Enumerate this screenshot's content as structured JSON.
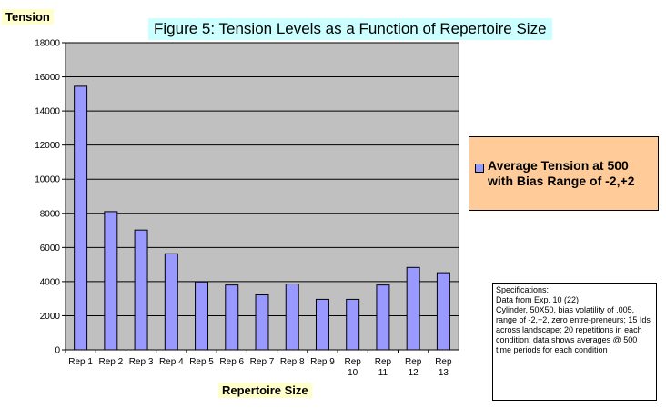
{
  "chart_data": {
    "type": "bar",
    "title": "Figure 5:  Tension Levels as a Function of Repertoire Size",
    "ylabel": "Tension",
    "xlabel": "Repertoire Size",
    "categories": [
      "Rep 1",
      "Rep 2",
      "Rep 3",
      "Rep 4",
      "Rep 5",
      "Rep 6",
      "Rep 7",
      "Rep 8",
      "Rep 9",
      "Rep 10",
      "Rep 11",
      "Rep 12",
      "Rep 13"
    ],
    "series": [
      {
        "name": "Average Tension at 500 with Bias Range of -2,+2",
        "values": [
          15450,
          8100,
          7020,
          5630,
          3980,
          3800,
          3220,
          3860,
          2960,
          2960,
          3800,
          4830,
          4520
        ]
      }
    ],
    "ylim": [
      0,
      18000
    ],
    "yticks": [
      "0",
      "2000",
      "4000",
      "6000",
      "8000",
      "10000",
      "12000",
      "14000",
      "16000",
      "18000"
    ],
    "grid": true,
    "legend_position": "right",
    "colors": {
      "bar": "#9999ff",
      "plot_background": "#c0c0c0",
      "legend_background": "#ffcc99",
      "title_background": "#ccffff",
      "label_background": "#ffffcc"
    }
  },
  "notes": {
    "specifications": "Specifications:\nData from Exp. 10 (22)\nCylinder, 50X50, bias volatility of .005, range of -2,+2, zero entre-preneurs; 15 Ids across landscape;  20 repetitions in each condition; data shows averages @ 500 time periods for each condition"
  }
}
